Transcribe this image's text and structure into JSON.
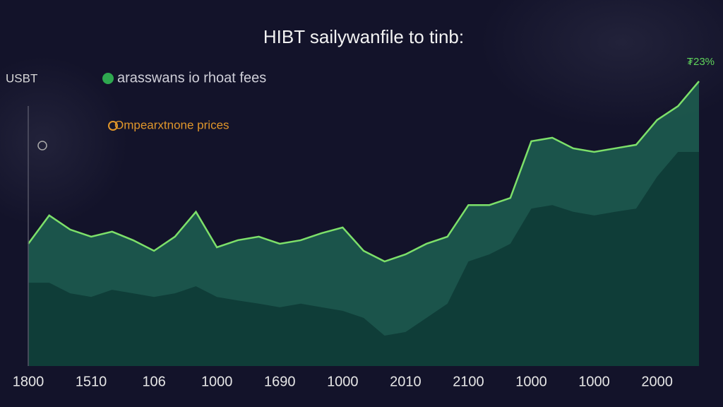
{
  "chart_data": {
    "type": "area",
    "title": "HIBT sailywanfile to tinb:",
    "y_label": "USBT",
    "annotation": "₮23%",
    "categories": [
      "1800",
      null,
      null,
      "1510",
      null,
      null,
      "106",
      null,
      null,
      "1000",
      null,
      null,
      "1690",
      null,
      null,
      "1000",
      null,
      null,
      "2010",
      null,
      null,
      "2100",
      null,
      null,
      "1000",
      null,
      null,
      "1000",
      null,
      null,
      "2000",
      null,
      null
    ],
    "ylim": [
      0,
      100
    ],
    "series": [
      {
        "name": "arasswans io rhoat fees",
        "color": "#7de06a",
        "fill": "#1d5c4f",
        "legend_color": "#2ea84f",
        "values": [
          41.4,
          51.0,
          46.2,
          43.8,
          45.5,
          42.6,
          39.0,
          43.8,
          52.2,
          40.2,
          42.6,
          43.8,
          41.4,
          42.6,
          45.0,
          46.9,
          39.0,
          35.4,
          37.8,
          41.4,
          43.8,
          54.5,
          54.5,
          56.9,
          76.1,
          77.3,
          73.7,
          72.5,
          73.7,
          74.9,
          83.3,
          88.0,
          96.4
        ]
      },
      {
        "name": "Ompearxtnone prices",
        "color": "#0f3d38",
        "fill": "#0f3d38",
        "legend_color": "#e0962a",
        "values": [
          28.2,
          28.2,
          24.6,
          23.4,
          25.8,
          24.6,
          23.4,
          24.6,
          27.0,
          23.4,
          22.2,
          21.1,
          19.9,
          21.1,
          19.9,
          18.7,
          16.3,
          10.3,
          11.5,
          16.3,
          21.1,
          35.4,
          37.8,
          41.4,
          53.3,
          54.5,
          52.2,
          51.0,
          52.2,
          53.3,
          64.1,
          72.5,
          72.5
        ]
      }
    ]
  }
}
